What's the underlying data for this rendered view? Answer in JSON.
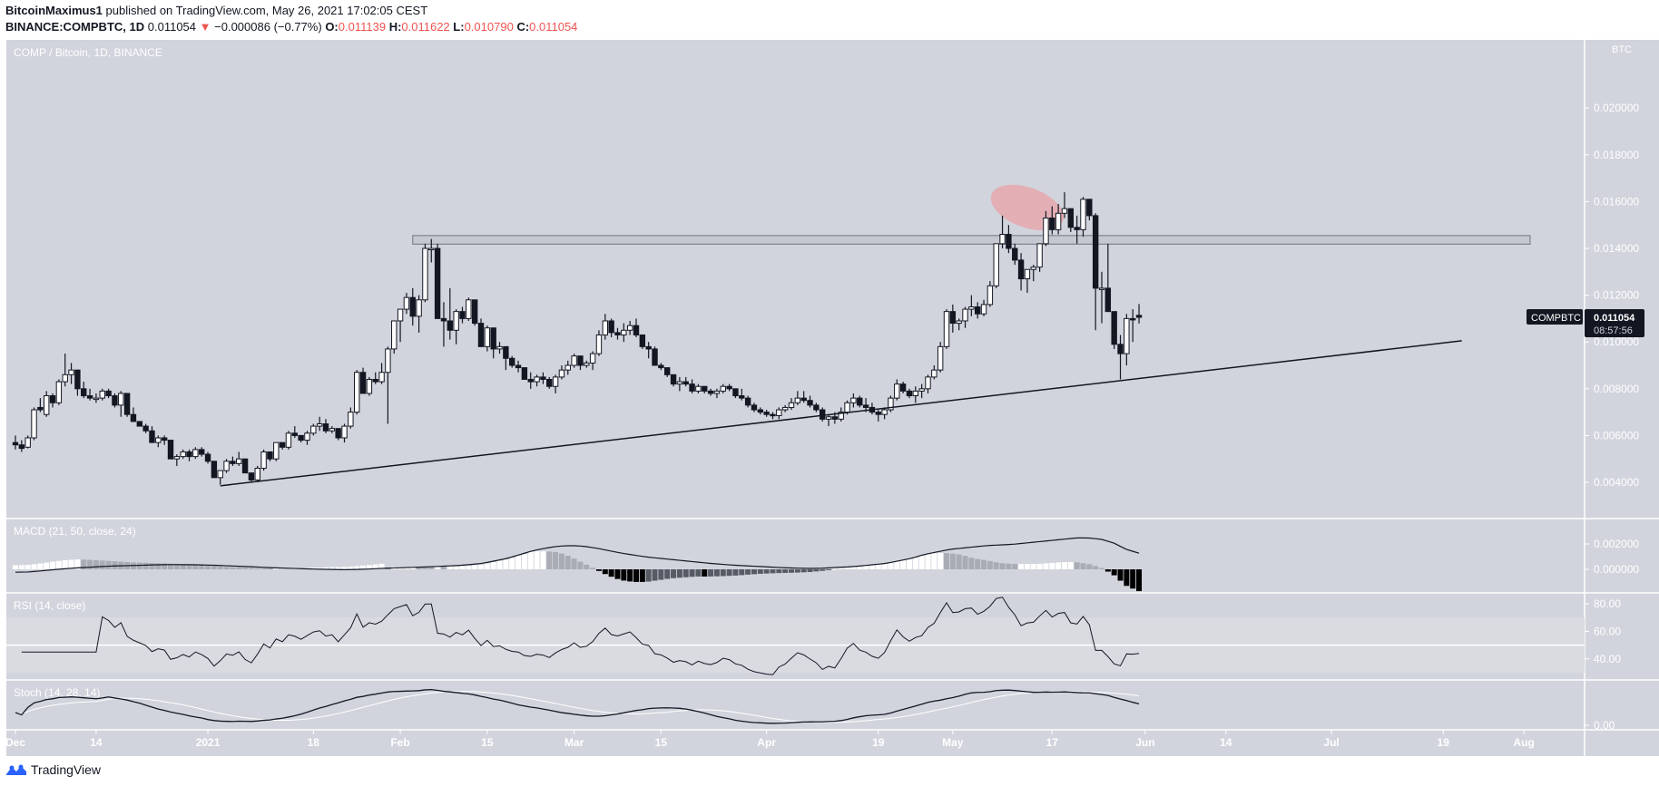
{
  "header": {
    "author": "BitcoinMaximus1",
    "published": "published on TradingView.com, May 26, 2021 17:02:05 CEST",
    "symbol": "BINANCE:COMPBTC, 1D",
    "last": "0.011054",
    "change": "−0.000086 (−0.77%)",
    "change_direction": "down",
    "o_label": "O:",
    "o": "0.011139",
    "h_label": "H:",
    "h": "0.011622",
    "l_label": "L:",
    "l": "0.010790",
    "c_label": "C:",
    "c": "0.011054"
  },
  "footer": {
    "brand": "TradingView",
    "logo_icon": "tradingview-logo-icon"
  },
  "colors": {
    "background": "#d1d4dc",
    "bull": "#ffffff",
    "bear": "#131722",
    "axis_text": "#ffffff",
    "highlight_ellipse": "#e8a3a8",
    "resistance_box": "#c5c8d1",
    "macd_hist_up_strong": "#ffffff",
    "macd_hist_up_weak": "#a9acb5",
    "macd_hist_down_weak": "#575b66",
    "macd_hist_down_strong": "#000000"
  },
  "chart_data": {
    "type": "candlestick",
    "title": "COMP / Bitcoin, 1D, BINANCE",
    "currency_label": "BTC",
    "last_price_tag": {
      "symbol": "COMPBTC",
      "price": "0.011054",
      "countdown": "08:57:56"
    },
    "price_axis": {
      "ticks": [
        "0.020000",
        "0.018000",
        "0.016000",
        "0.014000",
        "0.012000",
        "0.010000",
        "0.008000",
        "0.006000",
        "0.004000"
      ],
      "ylim": [
        0.0037,
        0.0217
      ]
    },
    "x_axis": {
      "ticks": [
        {
          "label": "Dec",
          "day": 0
        },
        {
          "label": "14",
          "day": 13
        },
        {
          "label": "2021",
          "day": 31
        },
        {
          "label": "18",
          "day": 48
        },
        {
          "label": "Feb",
          "day": 62
        },
        {
          "label": "15",
          "day": 76
        },
        {
          "label": "Mar",
          "day": 90
        },
        {
          "label": "15",
          "day": 104
        },
        {
          "label": "Apr",
          "day": 121
        },
        {
          "label": "19",
          "day": 139
        },
        {
          "label": "May",
          "day": 151
        },
        {
          "label": "17",
          "day": 167
        },
        {
          "label": "Jun",
          "day": 182
        },
        {
          "label": "14",
          "day": 195
        },
        {
          "label": "Jul",
          "day": 212
        },
        {
          "label": "19",
          "day": 230
        },
        {
          "label": "Aug",
          "day": 243
        }
      ]
    },
    "annotations": {
      "resistance_zone": {
        "from_day": 64,
        "to_day": 244,
        "low": 0.01418,
        "high": 0.01455
      },
      "ascending_trendline": {
        "from": {
          "day": 33,
          "price": 0.00385
        },
        "to": {
          "day": 233,
          "price": 0.01005
        }
      },
      "highlight_ellipse": {
        "center_day": 163,
        "center_price": 0.0159,
        "label": "rejection highlight"
      }
    },
    "ohlc": [
      [
        0.0057,
        0.006,
        0.0054,
        0.0056
      ],
      [
        0.0056,
        0.0058,
        0.0053,
        0.00545
      ],
      [
        0.0055,
        0.006,
        0.00545,
        0.0059
      ],
      [
        0.0059,
        0.0072,
        0.0058,
        0.0071
      ],
      [
        0.0072,
        0.0076,
        0.007,
        0.0071
      ],
      [
        0.0069,
        0.0079,
        0.0068,
        0.0077
      ],
      [
        0.0077,
        0.0078,
        0.0072,
        0.0074
      ],
      [
        0.0074,
        0.0084,
        0.0073,
        0.0083
      ],
      [
        0.0083,
        0.0095,
        0.0081,
        0.0086
      ],
      [
        0.0086,
        0.0091,
        0.0082,
        0.0088
      ],
      [
        0.0088,
        0.0087,
        0.0077,
        0.008
      ],
      [
        0.008,
        0.0083,
        0.0076,
        0.0077
      ],
      [
        0.0077,
        0.008,
        0.0075,
        0.0076
      ],
      [
        0.0076,
        0.0078,
        0.0074,
        0.0076
      ],
      [
        0.0076,
        0.008,
        0.0075,
        0.0079
      ],
      [
        0.0079,
        0.008,
        0.0076,
        0.0077
      ],
      [
        0.0077,
        0.0078,
        0.0072,
        0.0073
      ],
      [
        0.0073,
        0.0079,
        0.0068,
        0.0078
      ],
      [
        0.0078,
        0.0078,
        0.0068,
        0.0069
      ],
      [
        0.0069,
        0.0072,
        0.0067,
        0.0066
      ],
      [
        0.0066,
        0.0066,
        0.0064,
        0.0064
      ],
      [
        0.0064,
        0.0065,
        0.0061,
        0.0062
      ],
      [
        0.0062,
        0.0064,
        0.0058,
        0.0057
      ],
      [
        0.0057,
        0.006,
        0.0055,
        0.0059
      ],
      [
        0.0059,
        0.006,
        0.0056,
        0.0058
      ],
      [
        0.0058,
        0.0056,
        0.005,
        0.005
      ],
      [
        0.005,
        0.0052,
        0.0047,
        0.0051
      ],
      [
        0.0051,
        0.0054,
        0.005,
        0.0053
      ],
      [
        0.0053,
        0.0054,
        0.0049,
        0.0051
      ],
      [
        0.0051,
        0.0055,
        0.005,
        0.0054
      ],
      [
        0.0054,
        0.0055,
        0.0051,
        0.0052
      ],
      [
        0.0052,
        0.0053,
        0.0048,
        0.0049
      ],
      [
        0.0049,
        0.0048,
        0.0042,
        0.0042
      ],
      [
        0.0042,
        0.0045,
        0.0039,
        0.0045
      ],
      [
        0.0045,
        0.005,
        0.0044,
        0.0049
      ],
      [
        0.0049,
        0.0051,
        0.0047,
        0.0048
      ],
      [
        0.0048,
        0.0053,
        0.0047,
        0.005
      ],
      [
        0.005,
        0.005,
        0.0044,
        0.0044
      ],
      [
        0.0044,
        0.0043,
        0.004,
        0.0041
      ],
      [
        0.0041,
        0.0047,
        0.004,
        0.0046
      ],
      [
        0.0046,
        0.0054,
        0.0045,
        0.0053
      ],
      [
        0.0053,
        0.0053,
        0.0049,
        0.005
      ],
      [
        0.005,
        0.0057,
        0.0049,
        0.0057
      ],
      [
        0.0057,
        0.0057,
        0.0054,
        0.0055
      ],
      [
        0.0055,
        0.0062,
        0.0054,
        0.0061
      ],
      [
        0.0061,
        0.0064,
        0.0059,
        0.006
      ],
      [
        0.006,
        0.006,
        0.0057,
        0.0058
      ],
      [
        0.0058,
        0.0062,
        0.0056,
        0.0061
      ],
      [
        0.0061,
        0.0065,
        0.006,
        0.0064
      ],
      [
        0.0064,
        0.0068,
        0.0062,
        0.0065
      ],
      [
        0.0065,
        0.0067,
        0.0061,
        0.0062
      ],
      [
        0.0062,
        0.0064,
        0.0061,
        0.0063
      ],
      [
        0.0063,
        0.0062,
        0.0058,
        0.0059
      ],
      [
        0.0059,
        0.0065,
        0.0057,
        0.0064
      ],
      [
        0.0064,
        0.0072,
        0.0063,
        0.007
      ],
      [
        0.007,
        0.0088,
        0.0069,
        0.0087
      ],
      [
        0.0087,
        0.0089,
        0.0078,
        0.0078
      ],
      [
        0.0078,
        0.0085,
        0.0077,
        0.0084
      ],
      [
        0.0084,
        0.0087,
        0.0082,
        0.0083
      ],
      [
        0.0083,
        0.0091,
        0.0082,
        0.0087
      ],
      [
        0.0087,
        0.0098,
        0.0065,
        0.0097
      ],
      [
        0.0097,
        0.0109,
        0.0095,
        0.0109
      ],
      [
        0.0109,
        0.0112,
        0.01,
        0.0114
      ],
      [
        0.0114,
        0.0121,
        0.0112,
        0.0119
      ],
      [
        0.0119,
        0.0123,
        0.0107,
        0.0111
      ],
      [
        0.0111,
        0.012,
        0.0104,
        0.0118
      ],
      [
        0.0118,
        0.0142,
        0.0117,
        0.014
      ],
      [
        0.014,
        0.0144,
        0.0134,
        0.014
      ],
      [
        0.014,
        0.0142,
        0.011,
        0.011
      ],
      [
        0.011,
        0.0117,
        0.0098,
        0.0109
      ],
      [
        0.0109,
        0.0123,
        0.0101,
        0.0105
      ],
      [
        0.0105,
        0.0114,
        0.0099,
        0.0113
      ],
      [
        0.0113,
        0.0115,
        0.0108,
        0.011
      ],
      [
        0.011,
        0.0119,
        0.0109,
        0.0118
      ],
      [
        0.0118,
        0.0116,
        0.0107,
        0.0108
      ],
      [
        0.0108,
        0.011,
        0.0101,
        0.0098
      ],
      [
        0.0098,
        0.0107,
        0.0096,
        0.0106
      ],
      [
        0.0106,
        0.0104,
        0.0093,
        0.0097
      ],
      [
        0.0097,
        0.01,
        0.0095,
        0.0098
      ],
      [
        0.0098,
        0.0095,
        0.0088,
        0.0093
      ],
      [
        0.0093,
        0.0094,
        0.0089,
        0.009
      ],
      [
        0.009,
        0.0092,
        0.0087,
        0.0089
      ],
      [
        0.0089,
        0.0089,
        0.0084,
        0.0084
      ],
      [
        0.0084,
        0.0087,
        0.008,
        0.0083
      ],
      [
        0.0083,
        0.0086,
        0.0081,
        0.0085
      ],
      [
        0.0085,
        0.0087,
        0.0082,
        0.0084
      ],
      [
        0.0084,
        0.0085,
        0.008,
        0.0081
      ],
      [
        0.0081,
        0.0086,
        0.0078,
        0.0085
      ],
      [
        0.0085,
        0.009,
        0.0084,
        0.0088
      ],
      [
        0.0088,
        0.0092,
        0.0086,
        0.009
      ],
      [
        0.009,
        0.0095,
        0.0089,
        0.0094
      ],
      [
        0.0094,
        0.0094,
        0.0088,
        0.009
      ],
      [
        0.009,
        0.0092,
        0.0089,
        0.0091
      ],
      [
        0.0091,
        0.0096,
        0.0088,
        0.0095
      ],
      [
        0.0095,
        0.0105,
        0.0094,
        0.0103
      ],
      [
        0.0103,
        0.0112,
        0.0101,
        0.0109
      ],
      [
        0.0109,
        0.011,
        0.0102,
        0.0104
      ],
      [
        0.0104,
        0.0106,
        0.0101,
        0.0103
      ],
      [
        0.0103,
        0.0108,
        0.01,
        0.0105
      ],
      [
        0.0105,
        0.0109,
        0.0103,
        0.0107
      ],
      [
        0.0107,
        0.011,
        0.0102,
        0.0103
      ],
      [
        0.0103,
        0.0103,
        0.0097,
        0.0098
      ],
      [
        0.0098,
        0.01,
        0.0093,
        0.0097
      ],
      [
        0.0097,
        0.0098,
        0.009,
        0.009
      ],
      [
        0.009,
        0.0091,
        0.0088,
        0.0089
      ],
      [
        0.0089,
        0.0088,
        0.0085,
        0.0086
      ],
      [
        0.0086,
        0.0085,
        0.0081,
        0.0082
      ],
      [
        0.0082,
        0.0085,
        0.0079,
        0.0083
      ],
      [
        0.0083,
        0.0085,
        0.0081,
        0.0082
      ],
      [
        0.0082,
        0.0084,
        0.0078,
        0.0079
      ],
      [
        0.0079,
        0.0082,
        0.0078,
        0.0081
      ],
      [
        0.0081,
        0.0081,
        0.0078,
        0.0079
      ],
      [
        0.0079,
        0.008,
        0.0077,
        0.0078
      ],
      [
        0.0078,
        0.008,
        0.0076,
        0.0079
      ],
      [
        0.0079,
        0.0082,
        0.0078,
        0.0081
      ],
      [
        0.0081,
        0.0082,
        0.0079,
        0.008
      ],
      [
        0.008,
        0.0079,
        0.0076,
        0.0077
      ],
      [
        0.0077,
        0.008,
        0.0075,
        0.0076
      ],
      [
        0.0076,
        0.0077,
        0.0072,
        0.0073
      ],
      [
        0.0073,
        0.0074,
        0.007,
        0.0071
      ],
      [
        0.0071,
        0.0072,
        0.0069,
        0.007
      ],
      [
        0.007,
        0.0071,
        0.0068,
        0.0069
      ],
      [
        0.0069,
        0.007,
        0.0067,
        0.00685
      ],
      [
        0.00685,
        0.0072,
        0.0067,
        0.0071
      ],
      [
        0.0071,
        0.0073,
        0.007,
        0.0072
      ],
      [
        0.0072,
        0.0076,
        0.0071,
        0.0074
      ],
      [
        0.0074,
        0.0079,
        0.0073,
        0.0076
      ],
      [
        0.0076,
        0.0079,
        0.0074,
        0.0075
      ],
      [
        0.0075,
        0.0077,
        0.0072,
        0.0073
      ],
      [
        0.0073,
        0.0074,
        0.007,
        0.0071
      ],
      [
        0.0071,
        0.0072,
        0.0066,
        0.0067
      ],
      [
        0.0067,
        0.0069,
        0.0064,
        0.0068
      ],
      [
        0.0068,
        0.007,
        0.0065,
        0.0067
      ],
      [
        0.0067,
        0.0072,
        0.0066,
        0.007
      ],
      [
        0.007,
        0.0075,
        0.0069,
        0.0074
      ],
      [
        0.0074,
        0.0078,
        0.0072,
        0.0076
      ],
      [
        0.0076,
        0.0077,
        0.0072,
        0.0073
      ],
      [
        0.0073,
        0.0076,
        0.007,
        0.0072
      ],
      [
        0.0072,
        0.0074,
        0.0069,
        0.007
      ],
      [
        0.007,
        0.0071,
        0.0066,
        0.0069
      ],
      [
        0.0069,
        0.0072,
        0.0067,
        0.0071
      ],
      [
        0.0071,
        0.0077,
        0.007,
        0.0076
      ],
      [
        0.0076,
        0.0084,
        0.0075,
        0.0082
      ],
      [
        0.0082,
        0.0083,
        0.0078,
        0.0079
      ],
      [
        0.0079,
        0.008,
        0.0076,
        0.0077
      ],
      [
        0.0077,
        0.0081,
        0.0074,
        0.0079
      ],
      [
        0.0079,
        0.0082,
        0.0076,
        0.008
      ],
      [
        0.008,
        0.0086,
        0.0078,
        0.0085
      ],
      [
        0.0085,
        0.009,
        0.0084,
        0.0088
      ],
      [
        0.0088,
        0.01,
        0.0087,
        0.0098
      ],
      [
        0.0098,
        0.0114,
        0.0097,
        0.0113
      ],
      [
        0.0113,
        0.0116,
        0.0104,
        0.0108
      ],
      [
        0.0108,
        0.011,
        0.0105,
        0.0109
      ],
      [
        0.0109,
        0.0115,
        0.0106,
        0.0114
      ],
      [
        0.0114,
        0.012,
        0.0111,
        0.0115
      ],
      [
        0.0115,
        0.0117,
        0.011,
        0.0112
      ],
      [
        0.0112,
        0.0118,
        0.0111,
        0.0116
      ],
      [
        0.0116,
        0.0126,
        0.0115,
        0.0124
      ],
      [
        0.0124,
        0.0138,
        0.0123,
        0.0142
      ],
      [
        0.0142,
        0.0154,
        0.014,
        0.0146
      ],
      [
        0.0146,
        0.015,
        0.0138,
        0.014
      ],
      [
        0.014,
        0.0142,
        0.0133,
        0.0135
      ],
      [
        0.0135,
        0.0138,
        0.0122,
        0.0127
      ],
      [
        0.0127,
        0.013,
        0.0121,
        0.0131
      ],
      [
        0.0131,
        0.0133,
        0.0126,
        0.0132
      ],
      [
        0.0132,
        0.0142,
        0.013,
        0.0142
      ],
      [
        0.0142,
        0.0156,
        0.0141,
        0.0153
      ],
      [
        0.0153,
        0.0158,
        0.0146,
        0.0148
      ],
      [
        0.0148,
        0.0159,
        0.0146,
        0.0155
      ],
      [
        0.0155,
        0.0164,
        0.0153,
        0.0157
      ],
      [
        0.0157,
        0.0156,
        0.0147,
        0.0149
      ],
      [
        0.0149,
        0.0154,
        0.0142,
        0.0148
      ],
      [
        0.0148,
        0.0162,
        0.0145,
        0.0161
      ],
      [
        0.0161,
        0.016,
        0.0152,
        0.0154
      ],
      [
        0.0154,
        0.0155,
        0.0105,
        0.0123
      ],
      [
        0.0123,
        0.013,
        0.0108,
        0.0123
      ],
      [
        0.0123,
        0.0142,
        0.0114,
        0.0113
      ],
      [
        0.0113,
        0.0113,
        0.0097,
        0.0099
      ],
      [
        0.0099,
        0.0103,
        0.0084,
        0.0095
      ],
      [
        0.0095,
        0.0112,
        0.009,
        0.011
      ],
      [
        0.011,
        0.0114,
        0.01,
        0.01095
      ],
      [
        0.011139,
        0.011622,
        0.01079,
        0.011054
      ]
    ],
    "indicators": [
      {
        "name": "MACD",
        "label": "MACD (21, 50, close, 24)",
        "axis_ticks": [
          "0.002000",
          "0.000000"
        ],
        "line": [
          -0.0008,
          -0.00078,
          -0.0007,
          -0.0006,
          -0.00052,
          -0.00045,
          -0.0004,
          -0.00034,
          -0.0003,
          -0.00028,
          -0.00025,
          -0.00022,
          -0.0002,
          -0.0002,
          -0.00021,
          -0.00023,
          -0.00026,
          -0.0003,
          -0.00034,
          -0.00038,
          -0.00043,
          -0.00047,
          -0.0005,
          -0.00053,
          -0.00056,
          -0.00058,
          -0.0006,
          -0.00058,
          -0.00055,
          -0.0005,
          -0.00046,
          -0.00043,
          -0.0004,
          -0.00036,
          -0.00032,
          -0.00027,
          -0.0002,
          -0.0001,
          0.0001,
          0.0003,
          0.0006,
          0.0009,
          0.0011,
          0.00125,
          0.0013,
          0.00125,
          0.0011,
          0.0009,
          0.0007,
          0.00055,
          0.0004,
          0.0003,
          0.0002,
          0.0001,
          0.0,
          -0.0001,
          -0.00018,
          -0.00025,
          -0.0003,
          -0.00035,
          -0.0004,
          -0.00045,
          -0.00048,
          -0.0005,
          -0.00048,
          -0.00042,
          -0.00038,
          -0.0003,
          -0.0002,
          -0.0001,
          0.0001,
          0.0003,
          0.0006,
          0.0008,
          0.001,
          0.0011,
          0.0012,
          0.0013,
          0.00135,
          0.0014,
          0.0015,
          0.0016,
          0.0017,
          0.0018,
          0.0019,
          0.0019,
          0.0018,
          0.0015,
          0.001,
          0.0007
        ],
        "hist_note": "histogram rises to peak near Feb, negative Mar-Apr, positive Apr-May, turning negative late May"
      },
      {
        "name": "RSI",
        "label": "RSI (14, close)",
        "axis_ticks": [
          "80.00",
          "60.00",
          "40.00"
        ],
        "band": [
          30,
          70
        ],
        "mid": 50
      },
      {
        "name": "Stoch",
        "label": "Stoch (14, 28, 14)",
        "axis_ticks": [
          "0.00"
        ]
      }
    ]
  }
}
